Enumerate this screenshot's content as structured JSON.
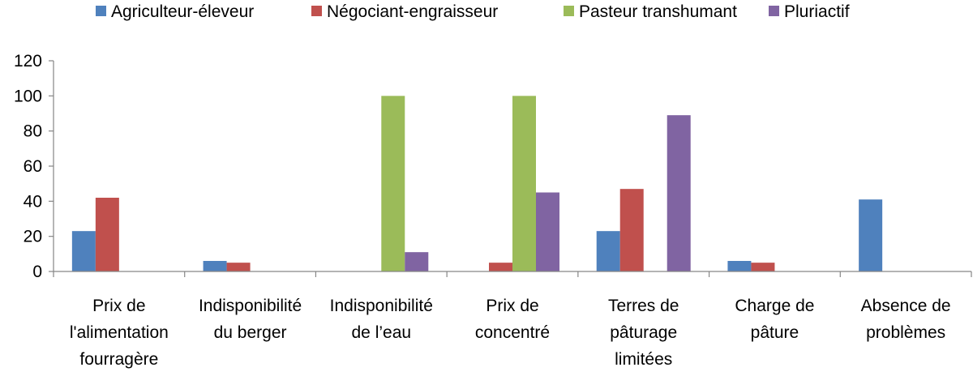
{
  "chart_data": {
    "type": "bar",
    "title": "",
    "xlabel": "",
    "ylabel": "",
    "ylim": [
      0,
      120
    ],
    "yticks": [
      "0",
      "20",
      "40",
      "60",
      "80",
      "100",
      "120"
    ],
    "grid": false,
    "legend": "top",
    "categories": [
      [
        "Prix de",
        "l'alimentation",
        "fourragère"
      ],
      [
        "Indisponibilité",
        "du berger"
      ],
      [
        "Indisponibilité",
        "de l’eau"
      ],
      [
        "Prix de",
        "concentré"
      ],
      [
        "Terres de",
        "pâturage",
        "limitées"
      ],
      [
        "Charge de",
        "pâture"
      ],
      [
        "Absence de",
        "problèmes"
      ]
    ],
    "series": [
      {
        "name": "Agriculteur-éleveur",
        "color": "#4F81BD",
        "values": [
          23,
          6,
          0,
          0,
          23,
          6,
          41
        ]
      },
      {
        "name": "Négociant-engraisseur",
        "color": "#C0504D",
        "values": [
          42,
          5,
          0,
          5,
          47,
          5,
          0
        ]
      },
      {
        "name": "Pasteur transhumant",
        "color": "#9BBB59",
        "values": [
          0,
          0,
          100,
          100,
          0,
          0,
          0
        ]
      },
      {
        "name": "Pluriactif",
        "color": "#8064A2",
        "values": [
          0,
          0,
          11,
          45,
          89,
          0,
          0
        ]
      }
    ]
  }
}
